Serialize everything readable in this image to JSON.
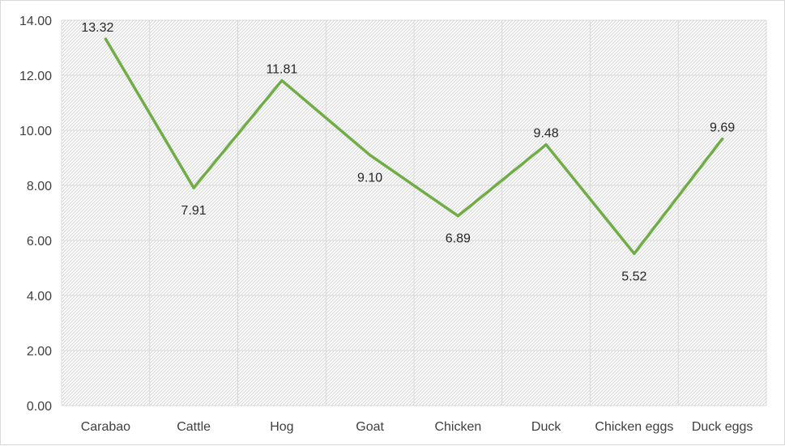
{
  "chart_data": {
    "type": "line",
    "title": "",
    "xlabel": "",
    "ylabel": "",
    "categories": [
      "Carabao",
      "Cattle",
      "Hog",
      "Goat",
      "Chicken",
      "Duck",
      "Chicken eggs",
      "Duck eggs"
    ],
    "series": [
      {
        "values": [
          13.32,
          7.91,
          11.81,
          9.1,
          6.89,
          9.48,
          5.52,
          9.69
        ],
        "labels": [
          "13.32",
          "7.91",
          "11.81",
          "9.10",
          "6.89",
          "9.48",
          "5.52",
          "9.69"
        ],
        "color": "#70ad47"
      }
    ],
    "ylim": [
      0,
      14
    ],
    "yticks": [
      0,
      2,
      4,
      6,
      8,
      10,
      12,
      14
    ],
    "ytick_labels": [
      "0.00",
      "2.00",
      "4.00",
      "6.00",
      "8.00",
      "10.00",
      "12.00",
      "14.00"
    ],
    "grid": true,
    "plot_fill": "hatched-gray",
    "legend": "none"
  }
}
